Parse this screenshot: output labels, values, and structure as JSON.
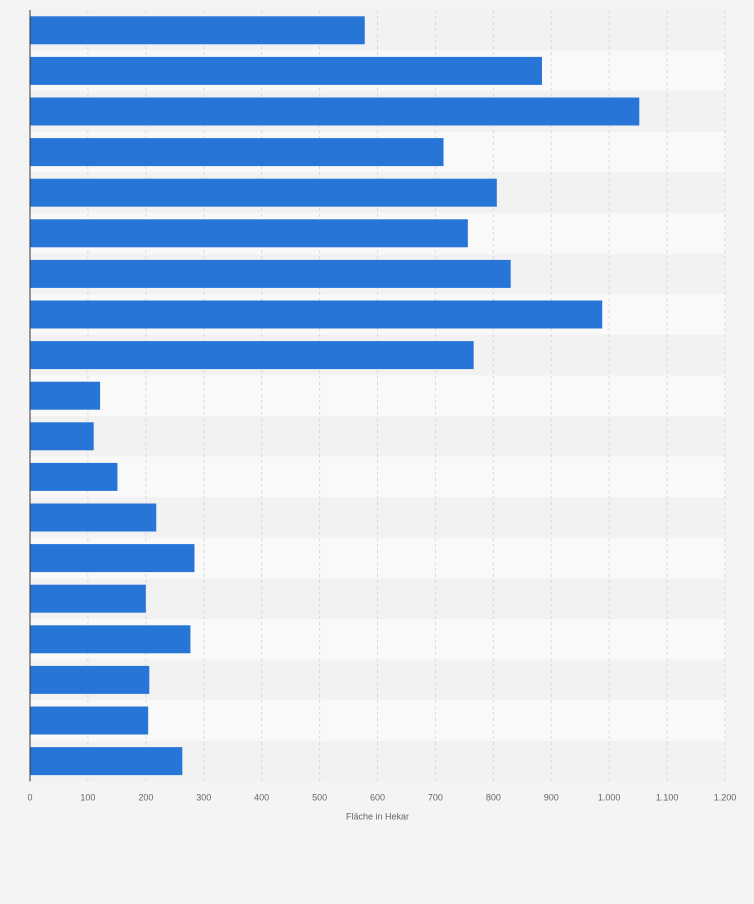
{
  "chart_data": {
    "type": "bar",
    "orientation": "horizontal",
    "title": "",
    "xlabel": "Fläche in Hekar",
    "ylabel": "",
    "xlim": [
      0,
      1200
    ],
    "xticks": [
      0,
      100,
      200,
      300,
      400,
      500,
      600,
      700,
      800,
      900,
      1000,
      1100,
      1200
    ],
    "xtick_labels": [
      "0",
      "100",
      "200",
      "300",
      "400",
      "500",
      "600",
      "700",
      "800",
      "900",
      "1.000",
      "1.100",
      "1.200"
    ],
    "values": [
      578,
      884,
      1052,
      714,
      806,
      756,
      830,
      988,
      766,
      121,
      110,
      151,
      218,
      284,
      200,
      277,
      206,
      204,
      263
    ],
    "grid": true,
    "colors": {
      "bar": "#2875d8",
      "band_light": "#f9f9f9",
      "band_dark": "#f2f2f2",
      "grid": "#d9d9d9",
      "axis": "#333333",
      "text": "#666666",
      "background": "#f4f4f4"
    }
  }
}
